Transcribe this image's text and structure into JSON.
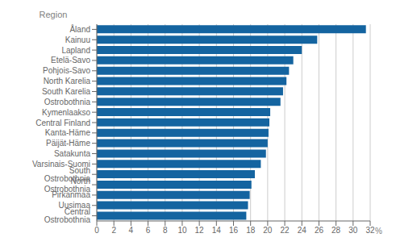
{
  "chart_data": {
    "type": "bar",
    "orientation": "horizontal",
    "xlabel": "%",
    "ylabel": "Region",
    "categories": [
      "Central Ostrobothnia",
      "Uusimaa",
      "Pirkanmaa",
      "North Ostrobothnia",
      "South Ostrobothnia",
      "Varsinais-Suomi",
      "Satakunta",
      "Päijät-Häme",
      "Kanta-Häme",
      "Central Finland",
      "Kymenlaakso",
      "Ostrobothnia",
      "South Karelia",
      "North Karelia",
      "Pohjois-Savo",
      "Etelä-Savo",
      "Lapland",
      "Kainuu",
      "Åland"
    ],
    "values": [
      17.5,
      17.7,
      17.9,
      18.1,
      18.5,
      19.2,
      19.8,
      20.0,
      20.1,
      20.2,
      20.3,
      21.5,
      21.8,
      22.2,
      22.5,
      23.0,
      24.0,
      25.8,
      31.5
    ],
    "color": "#1464a0",
    "xlim": [
      0,
      32
    ],
    "xticks": [
      0,
      2,
      4,
      6,
      8,
      10,
      12,
      14,
      16,
      18,
      20,
      22,
      24,
      26,
      28,
      30,
      32
    ],
    "grid": true
  }
}
